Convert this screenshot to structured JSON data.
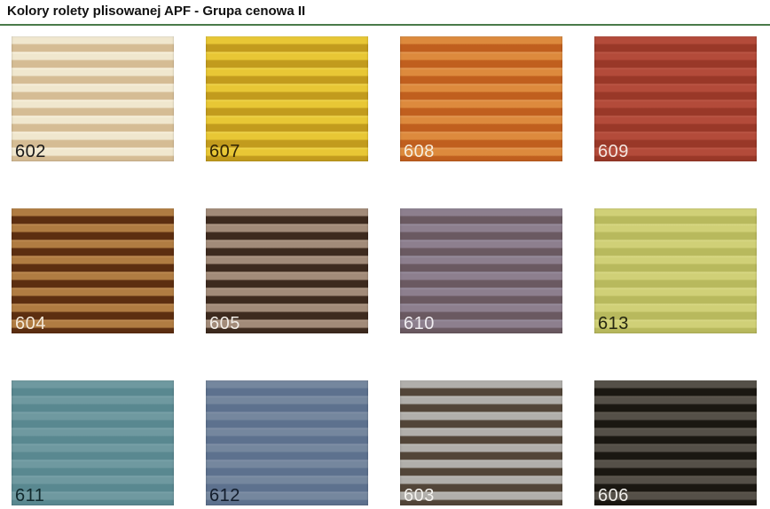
{
  "page": {
    "title": "Kolory rolety plisowanej APF - Grupa cenowa II",
    "accent_underline_color": "#4a7a4a",
    "background_color": "#ffffff"
  },
  "swatches": [
    {
      "code": "602",
      "stripe_dark": "#d5bc94",
      "stripe_light": "#f0e7ce",
      "stripe_highlight": "#f9f2e0",
      "label_color": "#1b1b1b"
    },
    {
      "code": "607",
      "stripe_dark": "#c29b1d",
      "stripe_light": "#e8c735",
      "stripe_highlight": "#f0d64e",
      "label_color": "#332605"
    },
    {
      "code": "608",
      "stripe_dark": "#c05f1e",
      "stripe_light": "#dd8a3d",
      "stripe_highlight": "#e39a55",
      "label_color": "#f7eedd"
    },
    {
      "code": "609",
      "stripe_dark": "#993828",
      "stripe_light": "#b34b3a",
      "stripe_highlight": "#bc5847",
      "label_color": "#f5e7e1"
    },
    {
      "code": "604",
      "stripe_dark": "#5c2e10",
      "stripe_light": "#b07c42",
      "stripe_highlight": "#c08e55",
      "label_color": "#f4e9d9"
    },
    {
      "code": "605",
      "stripe_dark": "#3d2a1e",
      "stripe_light": "#a28b79",
      "stripe_highlight": "#b09a88",
      "label_color": "#f2ede7"
    },
    {
      "code": "610",
      "stripe_dark": "#6a5961",
      "stripe_light": "#8d7f8e",
      "stripe_highlight": "#998fa0",
      "label_color": "#f0edf1"
    },
    {
      "code": "613",
      "stripe_dark": "#b8b95d",
      "stripe_light": "#d0d077",
      "stripe_highlight": "#d9d985",
      "label_color": "#262711"
    },
    {
      "code": "611",
      "stripe_dark": "#598890",
      "stripe_light": "#6f99a0",
      "stripe_highlight": "#7aa3aa",
      "label_color": "#122a2e"
    },
    {
      "code": "612",
      "stripe_dark": "#5d718e",
      "stripe_light": "#75879e",
      "stripe_highlight": "#8191a7",
      "label_color": "#131d2c"
    },
    {
      "code": "603",
      "stripe_dark": "#524538",
      "stripe_light": "#b1afab",
      "stripe_highlight": "#bdbbb7",
      "label_color": "#f4f2ee"
    },
    {
      "code": "606",
      "stripe_dark": "#1a1711",
      "stripe_light": "#555048",
      "stripe_highlight": "#5e5950",
      "label_color": "#f1efeb"
    }
  ]
}
